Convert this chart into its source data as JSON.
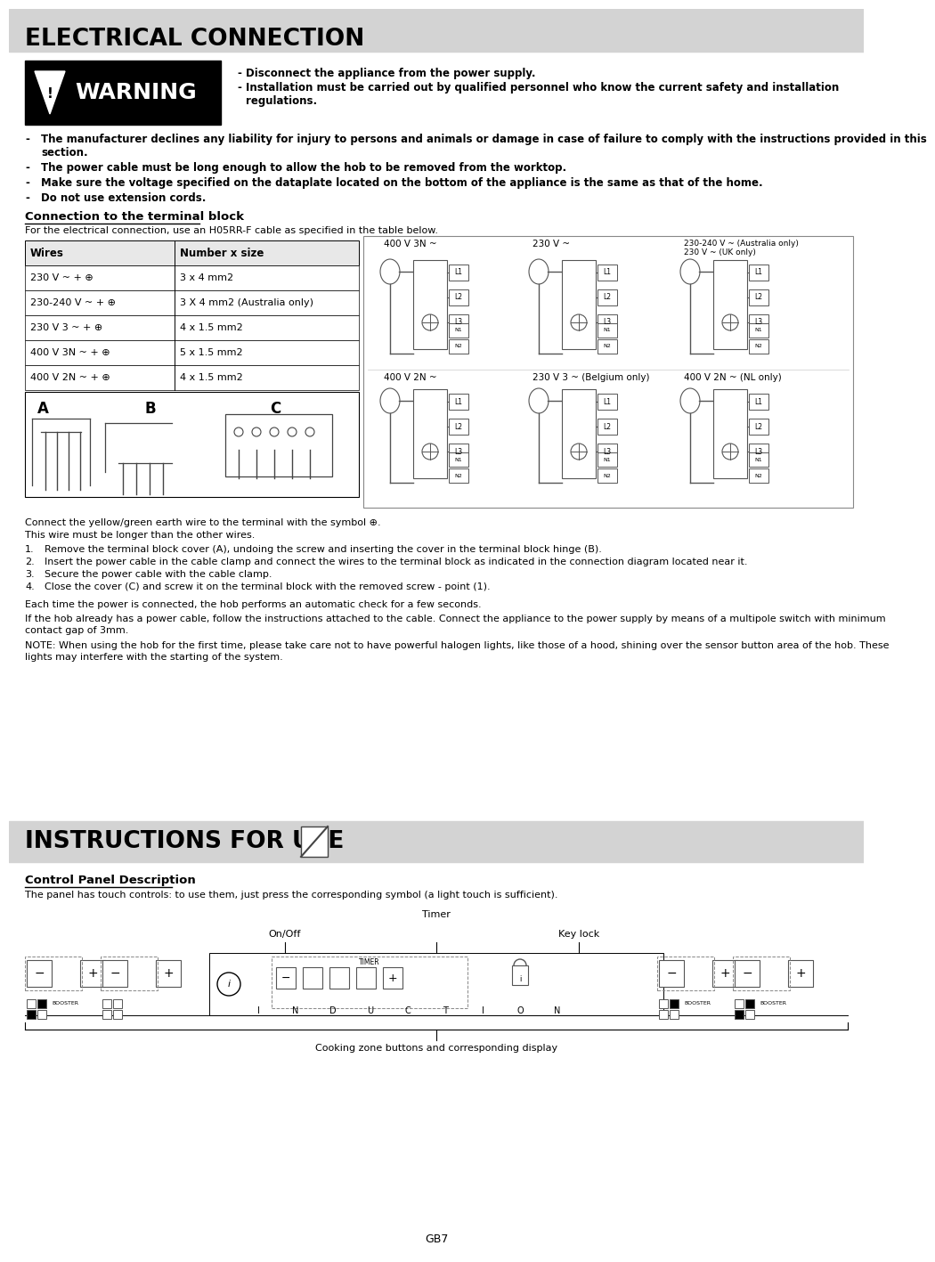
{
  "page_bg": "#ffffff",
  "header_bg": "#d3d3d3",
  "header_text": "ELECTRICAL CONNECTION",
  "warning_bg": "#000000",
  "warning_text": "WARNING",
  "warning_bullets": [
    "Disconnect the appliance from the power supply.",
    "Installation must be carried out by qualified personnel who know the current safety and installation\nregulations."
  ],
  "bold_bullets": [
    "The manufacturer declines any liability for injury to persons and animals or damage in case of failure to comply with the instructions provided in this section.",
    "The power cable must be long enough to allow the hob to be removed from the worktop.",
    "Make sure the voltage specified on the dataplate located on the bottom of the appliance is the same as that of the home.",
    "Do not use extension cords."
  ],
  "connection_heading": "Connection to the terminal block",
  "connection_intro": "For the electrical connection, use an H05RR-F cable as specified in the table below.",
  "table_headers": [
    "Wires",
    "Number x size"
  ],
  "table_rows": [
    [
      "230 V ~ + ⊕",
      "3 x 4 mm2"
    ],
    [
      "230-240 V ~ + ⊕",
      "3 X 4 mm2 (Australia only)"
    ],
    [
      "230 V 3 ~ + ⊕",
      "4 x 1.5 mm2"
    ],
    [
      "400 V 3N ~ + ⊕",
      "5 x 1.5 mm2"
    ],
    [
      "400 V 2N ~ + ⊕",
      "4 x 1.5 mm2"
    ]
  ],
  "earth_text1": "Connect the yellow/green earth wire to the terminal with the symbol ⊕.",
  "earth_text2": "This wire must be longer than the other wires.",
  "numbered_steps": [
    "Remove the terminal block cover (A), undoing the screw and inserting the cover in the terminal block hinge (B).",
    "Insert the power cable in the cable clamp and connect the wires to the terminal block as indicated in the connection diagram located near it.",
    "Secure the power cable with the cable clamp.",
    "Close the cover (C) and screw it on the terminal block with the removed screw - point (1)."
  ],
  "para1": "Each time the power is connected, the hob performs an automatic check for a few seconds.",
  "para2": "If the hob already has a power cable, follow the instructions attached to the cable. Connect the appliance to the power supply by means of a multipole switch with minimum\ncontact gap of 3mm.",
  "para3": "NOTE: When using the hob for the first time, please take care not to have powerful halogen lights, like those of a hood, shining over the sensor button area of the hob. These\nlights may interfere with the starting of the system.",
  "section2_bg": "#d3d3d3",
  "section2_text": "INSTRUCTIONS FOR USE",
  "control_heading": "Control Panel Description",
  "control_intro": "The panel has touch controls: to use them, just press the corresponding symbol (a light touch is sufficient).",
  "label_onoff": "On/Off",
  "label_timer": "Timer",
  "label_keylock": "Key lock",
  "cooking_zone_label": "Cooking zone buttons and corresponding display",
  "page_num": "GB7",
  "diag_row1_labels": [
    "400 V 3N ~",
    "230 V ~",
    "230-240 V ~ (Australia only)\n230 V ~ (UK only)"
  ],
  "diag_row2_labels": [
    "400 V 2N ~",
    "230 V 3 ~ (Belgium only)",
    "400 V 2N ~ (NL only)"
  ]
}
